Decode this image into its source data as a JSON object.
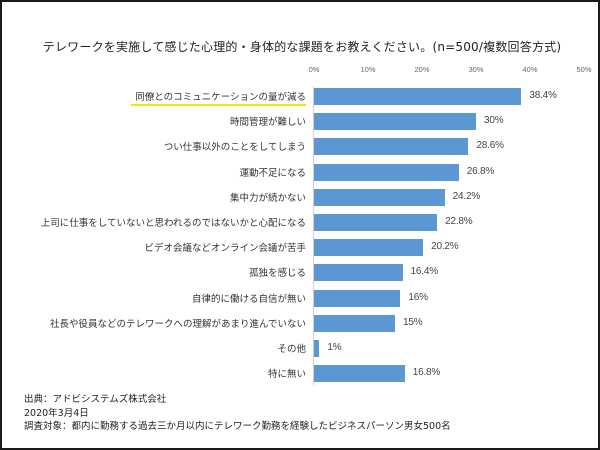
{
  "title": "テレワークを実施して感じた心理的・身体的な課題をお教えください。(n=500/複数回答方式)",
  "axis": {
    "ticks": [
      "0%",
      "10%",
      "20%",
      "30%",
      "40%",
      "50%"
    ]
  },
  "highlight_color": "#f2e600",
  "bar_color": "#5b97d3",
  "chart_data": {
    "type": "bar",
    "orientation": "horizontal",
    "title": "テレワークを実施して感じた心理的・身体的な課題をお教えください。(n=500/複数回答方式)",
    "xlabel": "",
    "ylabel": "",
    "xlim": [
      0,
      50
    ],
    "x_ticks": [
      "0%",
      "10%",
      "20%",
      "30%",
      "40%",
      "50%"
    ],
    "grid": false,
    "legend": null,
    "categories": [
      "同僚とのコミュニケーションの量が減る",
      "時間管理が難しい",
      "つい仕事以外のことをしてしまう",
      "運動不足になる",
      "集中力が続かない",
      "上司に仕事をしていないと思われるのではないかと心配になる",
      "ビデオ会議などオンライン会議が苦手",
      "孤独を感じる",
      "自律的に働ける自信が無い",
      "社長や役員などのテレワークへの理解があまり進んでいない",
      "その他",
      "特に無い"
    ],
    "values": [
      38.4,
      30,
      28.6,
      26.8,
      24.2,
      22.8,
      20.2,
      16.4,
      16,
      15,
      1,
      16.8
    ],
    "value_labels": [
      "38.4%",
      "30%",
      "28.6%",
      "26.8%",
      "24.2%",
      "22.8%",
      "20.2%",
      "16.4%",
      "16%",
      "15%",
      "1%",
      "16.8%"
    ],
    "highlighted_category": "同僚とのコミュニケーションの量が減る"
  },
  "rows": [
    {
      "label": "同僚とのコミュニケーションの量が減る",
      "value": 38.4,
      "value_label": "38.4%",
      "highlight": true
    },
    {
      "label": "時間管理が難しい",
      "value": 30,
      "value_label": "30%"
    },
    {
      "label": "つい仕事以外のことをしてしまう",
      "value": 28.6,
      "value_label": "28.6%"
    },
    {
      "label": "運動不足になる",
      "value": 26.8,
      "value_label": "26.8%"
    },
    {
      "label": "集中力が続かない",
      "value": 24.2,
      "value_label": "24.2%"
    },
    {
      "label": "上司に仕事をしていないと思われるのではないかと心配になる",
      "value": 22.8,
      "value_label": "22.8%"
    },
    {
      "label": "ビデオ会議などオンライン会議が苦手",
      "value": 20.2,
      "value_label": "20.2%"
    },
    {
      "label": "孤独を感じる",
      "value": 16.4,
      "value_label": "16.4%"
    },
    {
      "label": "自律的に働ける自信が無い",
      "value": 16,
      "value_label": "16%"
    },
    {
      "label": "社長や役員などのテレワークへの理解があまり進んでいない",
      "value": 15,
      "value_label": "15%"
    },
    {
      "label": "その他",
      "value": 1,
      "value_label": "1%"
    },
    {
      "label": "特に無い",
      "value": 16.8,
      "value_label": "16.8%"
    }
  ],
  "footer": {
    "source": "出典：アドビシステムズ株式会社",
    "date": "2020年3月4日",
    "subjects": "調査対象：都内に勤務する過去三か月以内にテレワーク勤務を経験したビジネスパーソン男女500名"
  }
}
